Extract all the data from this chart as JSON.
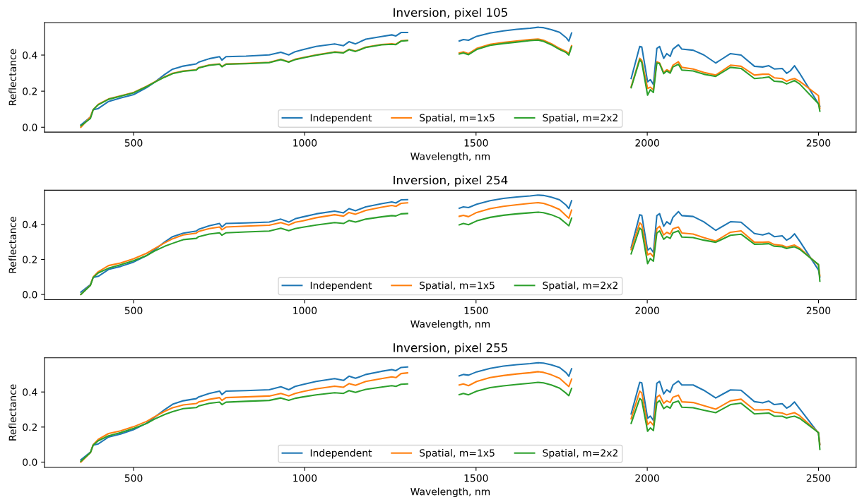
{
  "chart_data": [
    {
      "type": "line",
      "title": "Inversion, pixel 105",
      "xlabel": "Wavelength, nm",
      "ylabel": "Reflectance",
      "legend": "bottom",
      "grid": false,
      "xlim": [
        240,
        2610
      ],
      "xticks": [
        500,
        1000,
        1500,
        2000,
        2500
      ],
      "ylim": [
        -0.027,
        0.58
      ],
      "yticks": [
        {
          "value": 0,
          "label": "0.0"
        },
        {
          "value": 0.2,
          "label": "0.2"
        },
        {
          "value": 0.4,
          "label": "0.4"
        }
      ],
      "x": [
        346,
        374,
        382,
        397,
        427,
        462,
        500,
        538,
        561,
        591,
        614,
        645,
        683,
        690,
        721,
        751,
        758,
        770,
        828,
        896,
        930,
        953,
        972,
        995,
        1033,
        1087,
        1113,
        1129,
        1148,
        1178,
        1224,
        1254,
        1266,
        1281,
        1300,
        1375,
        1451,
        1463,
        1478,
        1502,
        1541,
        1580,
        1619,
        1658,
        1681,
        1697,
        1720,
        1744,
        1763,
        1771,
        1779,
        1870,
        1953,
        1978,
        1984,
        2001,
        2009,
        2018,
        2028,
        2036,
        2048,
        2057,
        2067,
        2075,
        2091,
        2101,
        2134,
        2165,
        2200,
        2243,
        2274,
        2313,
        2337,
        2355,
        2371,
        2394,
        2407,
        2418,
        2430,
        2445,
        2500,
        2504
      ],
      "series": [
        {
          "name": "Independent",
          "color": "#1f77b4",
          "values": [
            0.013,
            0.057,
            0.097,
            0.104,
            0.143,
            0.162,
            0.181,
            0.22,
            0.249,
            0.293,
            0.322,
            0.339,
            0.351,
            0.361,
            0.38,
            0.391,
            0.372,
            0.391,
            0.394,
            0.401,
            0.416,
            0.401,
            0.419,
            0.43,
            0.448,
            0.462,
            0.452,
            0.474,
            0.462,
            0.488,
            0.503,
            0.512,
            0.506,
            0.525,
            0.525,
            null,
            0.478,
            0.486,
            0.482,
            0.504,
            0.522,
            0.534,
            0.543,
            0.549,
            0.554,
            0.552,
            0.541,
            0.526,
            0.497,
            0.478,
            0.522,
            null,
            0.27,
            0.448,
            0.445,
            0.252,
            0.264,
            0.237,
            0.437,
            0.448,
            0.382,
            0.408,
            0.393,
            0.433,
            0.457,
            0.433,
            0.427,
            0.401,
            0.356,
            0.408,
            0.4,
            0.338,
            0.334,
            0.341,
            0.323,
            0.326,
            0.299,
            0.313,
            0.341,
            0.299,
            0.13,
            0.118
          ]
        },
        {
          "name": "Spatial, m=1x5",
          "color": "#ff7f0e",
          "values": [
            0.0,
            0.058,
            0.098,
            0.127,
            0.157,
            0.174,
            0.193,
            0.227,
            0.251,
            0.28,
            0.299,
            0.312,
            0.319,
            0.331,
            0.345,
            0.351,
            0.337,
            0.351,
            0.354,
            0.36,
            0.377,
            0.363,
            0.377,
            0.386,
            0.401,
            0.418,
            0.414,
            0.432,
            0.422,
            0.444,
            0.459,
            0.462,
            0.46,
            0.479,
            0.482,
            null,
            0.412,
            0.418,
            0.408,
            0.437,
            0.46,
            0.47,
            0.478,
            0.486,
            0.489,
            0.482,
            0.463,
            0.437,
            0.42,
            0.408,
            0.452,
            null,
            0.225,
            0.382,
            0.371,
            0.215,
            0.222,
            0.208,
            0.363,
            0.356,
            0.304,
            0.319,
            0.308,
            0.344,
            0.363,
            0.332,
            0.323,
            0.304,
            0.289,
            0.344,
            0.338,
            0.289,
            0.294,
            0.294,
            0.274,
            0.27,
            0.255,
            0.264,
            0.27,
            0.255,
            0.175,
            0.104
          ]
        },
        {
          "name": "Spatial, m=2x2",
          "color": "#2ca02c",
          "values": [
            0.008,
            0.049,
            0.097,
            0.125,
            0.155,
            0.172,
            0.191,
            0.225,
            0.249,
            0.278,
            0.297,
            0.31,
            0.317,
            0.329,
            0.343,
            0.349,
            0.335,
            0.349,
            0.352,
            0.358,
            0.375,
            0.361,
            0.375,
            0.384,
            0.399,
            0.416,
            0.412,
            0.43,
            0.42,
            0.442,
            0.457,
            0.46,
            0.458,
            0.477,
            0.48,
            null,
            0.406,
            0.412,
            0.402,
            0.431,
            0.454,
            0.464,
            0.472,
            0.48,
            0.483,
            0.476,
            0.457,
            0.431,
            0.414,
            0.4,
            0.446,
            null,
            0.219,
            0.374,
            0.359,
            0.178,
            0.208,
            0.193,
            0.356,
            0.353,
            0.297,
            0.312,
            0.3,
            0.334,
            0.349,
            0.317,
            0.312,
            0.294,
            0.282,
            0.332,
            0.326,
            0.27,
            0.274,
            0.279,
            0.255,
            0.252,
            0.24,
            0.249,
            0.259,
            0.24,
            0.13,
            0.089
          ]
        }
      ]
    },
    {
      "type": "line",
      "title": "Inversion, pixel 254",
      "xlabel": "Wavelength, nm",
      "ylabel": "Reflectance",
      "legend": "bottom",
      "grid": false,
      "xlim": [
        240,
        2610
      ],
      "xticks": [
        500,
        1000,
        1500,
        2000,
        2500
      ],
      "ylim": [
        -0.03,
        0.595
      ],
      "yticks": [
        {
          "value": 0,
          "label": "0.0"
        },
        {
          "value": 0.2,
          "label": "0.2"
        },
        {
          "value": 0.4,
          "label": "0.4"
        }
      ],
      "x": [
        346,
        374,
        382,
        397,
        427,
        462,
        500,
        538,
        561,
        591,
        614,
        645,
        683,
        690,
        721,
        751,
        758,
        770,
        828,
        896,
        930,
        953,
        972,
        995,
        1033,
        1087,
        1113,
        1129,
        1148,
        1178,
        1224,
        1254,
        1266,
        1281,
        1300,
        1375,
        1451,
        1463,
        1478,
        1502,
        1541,
        1580,
        1619,
        1658,
        1681,
        1697,
        1720,
        1744,
        1763,
        1771,
        1779,
        1870,
        1953,
        1978,
        1984,
        2001,
        2009,
        2018,
        2028,
        2036,
        2048,
        2057,
        2067,
        2075,
        2091,
        2101,
        2134,
        2165,
        2200,
        2243,
        2274,
        2313,
        2337,
        2355,
        2371,
        2394,
        2407,
        2418,
        2430,
        2445,
        2500,
        2504
      ],
      "series": [
        {
          "name": "Independent",
          "color": "#1f77b4",
          "values": [
            0.013,
            0.057,
            0.097,
            0.104,
            0.143,
            0.16,
            0.185,
            0.222,
            0.255,
            0.3,
            0.33,
            0.35,
            0.362,
            0.372,
            0.392,
            0.405,
            0.385,
            0.405,
            0.408,
            0.413,
            0.43,
            0.413,
            0.432,
            0.443,
            0.46,
            0.476,
            0.466,
            0.49,
            0.478,
            0.5,
            0.518,
            0.528,
            0.522,
            0.54,
            0.541,
            null,
            0.492,
            0.5,
            0.496,
            0.515,
            0.535,
            0.548,
            0.556,
            0.562,
            0.567,
            0.565,
            0.555,
            0.54,
            0.51,
            0.49,
            0.535,
            null,
            0.267,
            0.455,
            0.452,
            0.252,
            0.265,
            0.24,
            0.45,
            0.461,
            0.389,
            0.415,
            0.4,
            0.44,
            0.473,
            0.45,
            0.445,
            0.415,
            0.366,
            0.415,
            0.412,
            0.348,
            0.34,
            0.35,
            0.33,
            0.335,
            0.31,
            0.322,
            0.346,
            0.305,
            0.14,
            0.099
          ]
        },
        {
          "name": "Spatial, m=1x5",
          "color": "#ff7f0e",
          "values": [
            0.0,
            0.054,
            0.1,
            0.13,
            0.165,
            0.18,
            0.204,
            0.235,
            0.262,
            0.295,
            0.318,
            0.34,
            0.35,
            0.36,
            0.376,
            0.385,
            0.369,
            0.385,
            0.39,
            0.395,
            0.41,
            0.396,
            0.412,
            0.42,
            0.438,
            0.455,
            0.447,
            0.468,
            0.458,
            0.48,
            0.498,
            0.508,
            0.503,
            0.52,
            0.523,
            null,
            0.446,
            0.452,
            0.444,
            0.468,
            0.49,
            0.503,
            0.512,
            0.52,
            0.524,
            0.52,
            0.505,
            0.485,
            0.45,
            0.435,
            0.481,
            null,
            0.256,
            0.409,
            0.398,
            0.226,
            0.235,
            0.215,
            0.375,
            0.389,
            0.34,
            0.355,
            0.345,
            0.375,
            0.385,
            0.351,
            0.345,
            0.325,
            0.305,
            0.355,
            0.363,
            0.298,
            0.298,
            0.3,
            0.285,
            0.28,
            0.27,
            0.276,
            0.282,
            0.265,
            0.168,
            0.107
          ]
        },
        {
          "name": "Spatial, m=2x2",
          "color": "#2ca02c",
          "values": [
            0.0,
            0.052,
            0.097,
            0.123,
            0.15,
            0.17,
            0.193,
            0.222,
            0.248,
            0.275,
            0.292,
            0.313,
            0.32,
            0.33,
            0.345,
            0.352,
            0.338,
            0.352,
            0.357,
            0.362,
            0.378,
            0.364,
            0.376,
            0.384,
            0.396,
            0.41,
            0.405,
            0.422,
            0.413,
            0.43,
            0.443,
            0.45,
            0.448,
            0.46,
            0.462,
            null,
            0.397,
            0.405,
            0.398,
            0.42,
            0.44,
            0.452,
            0.46,
            0.466,
            0.47,
            0.467,
            0.455,
            0.436,
            0.405,
            0.392,
            0.435,
            null,
            0.232,
            0.379,
            0.368,
            0.176,
            0.205,
            0.19,
            0.35,
            0.363,
            0.315,
            0.33,
            0.32,
            0.352,
            0.363,
            0.328,
            0.325,
            0.31,
            0.298,
            0.338,
            0.344,
            0.287,
            0.288,
            0.29,
            0.275,
            0.272,
            0.262,
            0.268,
            0.272,
            0.258,
            0.171,
            0.076
          ]
        }
      ]
    },
    {
      "type": "line",
      "title": "Inversion, pixel 255",
      "xlabel": "Wavelength, nm",
      "ylabel": "Reflectance",
      "legend": "bottom",
      "grid": false,
      "xlim": [
        240,
        2610
      ],
      "xticks": [
        500,
        1000,
        1500,
        2000,
        2500
      ],
      "ylim": [
        -0.03,
        0.595
      ],
      "yticks": [
        {
          "value": 0,
          "label": "0.0"
        },
        {
          "value": 0.2,
          "label": "0.2"
        },
        {
          "value": 0.4,
          "label": "0.4"
        }
      ],
      "x": [
        346,
        374,
        382,
        397,
        427,
        462,
        500,
        538,
        561,
        591,
        614,
        645,
        683,
        690,
        721,
        751,
        758,
        770,
        828,
        896,
        930,
        953,
        972,
        995,
        1033,
        1087,
        1113,
        1129,
        1148,
        1178,
        1224,
        1254,
        1266,
        1281,
        1300,
        1375,
        1451,
        1463,
        1478,
        1502,
        1541,
        1580,
        1619,
        1658,
        1681,
        1697,
        1720,
        1744,
        1763,
        1771,
        1779,
        1870,
        1953,
        1978,
        1984,
        2001,
        2009,
        2018,
        2028,
        2036,
        2048,
        2057,
        2067,
        2075,
        2091,
        2101,
        2134,
        2165,
        2200,
        2243,
        2274,
        2313,
        2337,
        2355,
        2371,
        2394,
        2407,
        2418,
        2430,
        2445,
        2500,
        2504
      ],
      "series": [
        {
          "name": "Independent",
          "color": "#1f77b4",
          "values": [
            0.013,
            0.057,
            0.097,
            0.104,
            0.143,
            0.16,
            0.185,
            0.222,
            0.255,
            0.3,
            0.33,
            0.35,
            0.362,
            0.372,
            0.392,
            0.405,
            0.385,
            0.405,
            0.408,
            0.413,
            0.43,
            0.413,
            0.432,
            0.443,
            0.46,
            0.476,
            0.466,
            0.49,
            0.478,
            0.5,
            0.518,
            0.528,
            0.522,
            0.54,
            0.543,
            null,
            0.492,
            0.5,
            0.496,
            0.515,
            0.535,
            0.548,
            0.556,
            0.562,
            0.567,
            0.565,
            0.555,
            0.54,
            0.51,
            0.49,
            0.532,
            null,
            0.275,
            0.455,
            0.452,
            0.25,
            0.262,
            0.238,
            0.45,
            0.461,
            0.389,
            0.412,
            0.398,
            0.44,
            0.463,
            0.44,
            0.44,
            0.41,
            0.366,
            0.412,
            0.41,
            0.345,
            0.338,
            0.348,
            0.328,
            0.333,
            0.308,
            0.32,
            0.343,
            0.305,
            0.165,
            0.1
          ]
        },
        {
          "name": "Spatial, m=1x5",
          "color": "#ff7f0e",
          "values": [
            0.0,
            0.054,
            0.1,
            0.13,
            0.163,
            0.178,
            0.202,
            0.232,
            0.258,
            0.29,
            0.31,
            0.326,
            0.334,
            0.343,
            0.358,
            0.368,
            0.352,
            0.368,
            0.372,
            0.377,
            0.392,
            0.378,
            0.392,
            0.403,
            0.418,
            0.433,
            0.427,
            0.448,
            0.438,
            0.46,
            0.476,
            0.486,
            0.482,
            0.505,
            0.509,
            null,
            0.44,
            0.446,
            0.436,
            0.46,
            0.482,
            0.494,
            0.503,
            0.51,
            0.516,
            0.512,
            0.498,
            0.478,
            0.445,
            0.431,
            0.473,
            null,
            0.247,
            0.405,
            0.395,
            0.214,
            0.23,
            0.21,
            0.37,
            0.382,
            0.335,
            0.35,
            0.34,
            0.37,
            0.382,
            0.344,
            0.34,
            0.322,
            0.302,
            0.35,
            0.359,
            0.298,
            0.298,
            0.3,
            0.285,
            0.28,
            0.27,
            0.276,
            0.282,
            0.265,
            0.168,
            0.1
          ]
        },
        {
          "name": "Spatial, m=2x2",
          "color": "#2ca02c",
          "values": [
            0.005,
            0.054,
            0.097,
            0.122,
            0.15,
            0.168,
            0.192,
            0.22,
            0.245,
            0.272,
            0.288,
            0.305,
            0.311,
            0.32,
            0.335,
            0.342,
            0.328,
            0.342,
            0.347,
            0.352,
            0.366,
            0.352,
            0.364,
            0.372,
            0.384,
            0.396,
            0.392,
            0.408,
            0.398,
            0.415,
            0.428,
            0.436,
            0.432,
            0.444,
            0.446,
            null,
            0.385,
            0.392,
            0.384,
            0.405,
            0.425,
            0.435,
            0.443,
            0.45,
            0.455,
            0.452,
            0.44,
            0.422,
            0.393,
            0.379,
            0.42,
            null,
            0.221,
            0.363,
            0.352,
            0.176,
            0.195,
            0.18,
            0.338,
            0.351,
            0.305,
            0.318,
            0.308,
            0.338,
            0.348,
            0.313,
            0.31,
            0.296,
            0.282,
            0.328,
            0.336,
            0.275,
            0.278,
            0.28,
            0.262,
            0.262,
            0.252,
            0.258,
            0.262,
            0.25,
            0.168,
            0.073
          ]
        }
      ]
    }
  ]
}
